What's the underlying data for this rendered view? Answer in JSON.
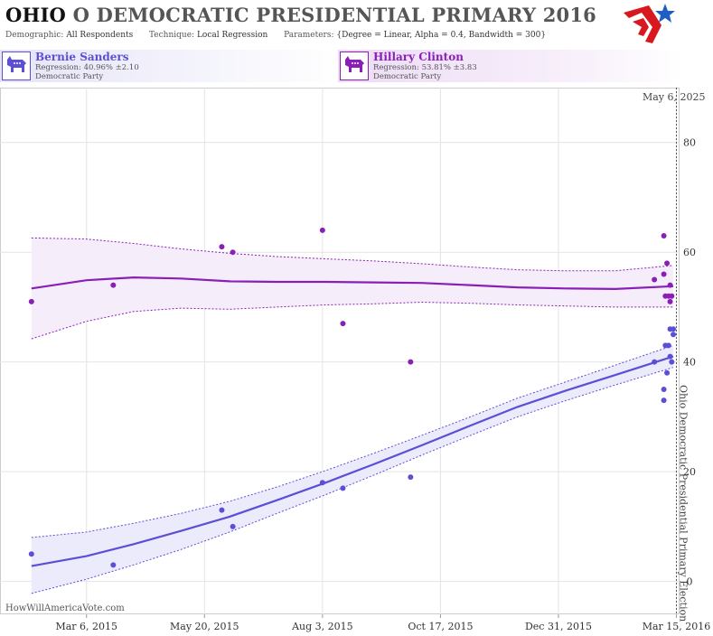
{
  "header": {
    "title_state": "OHIO",
    "title_rest": "O DEMOCRATIC PRESIDENTIAL PRIMARY 2016",
    "demographic_label": "Demographic:",
    "demographic_value": "All Respondents",
    "technique_label": "Technique:",
    "technique_value": "Local Regression",
    "parameters_label": "Parameters:",
    "parameters_value": "{Degree = Linear, Alpha = 0.4, Bandwidth = 300}"
  },
  "logo": {
    "icon": "flag-star-logo",
    "colors": {
      "red": "#d7191f",
      "blue": "#1f5fc4"
    }
  },
  "candidates": [
    {
      "name": "Bernie Sanders",
      "regression": "Regression: 40.96% ±2.10",
      "party": "Democratic Party",
      "icon": "democrat-donkey-icon",
      "color": "#5b4fd6"
    },
    {
      "name": "Hillary Clinton",
      "regression": "Regression: 53.81% ±3.83",
      "party": "Democratic Party",
      "icon": "democrat-donkey-icon",
      "color": "#8a1fb8"
    }
  ],
  "watermark": "HowWillAmericaVote.com",
  "chart_data": {
    "type": "line",
    "x_type": "date",
    "xlim": [
      "2015-01-10",
      "2016-03-17"
    ],
    "ylim": [
      -6,
      90
    ],
    "y_ticks": [
      0,
      20,
      40,
      60,
      80
    ],
    "x_ticks": [
      {
        "date": "2015-03-06",
        "label": "Mar 6, 2015"
      },
      {
        "date": "2015-05-20",
        "label": "May 20, 2015"
      },
      {
        "date": "2015-08-03",
        "label": "Aug 3, 2015"
      },
      {
        "date": "2015-10-17",
        "label": "Oct 17, 2015"
      },
      {
        "date": "2015-12-31",
        "label": "Dec 31, 2015"
      },
      {
        "date": "2016-03-15",
        "label": "Mar 15, 2016"
      }
    ],
    "grid": true,
    "event_line": {
      "date": "2016-03-15",
      "label": "Ohio Democratic Presidential Primary Election"
    },
    "date_label": "May 6, 2025",
    "series": [
      {
        "name": "Bernie Sanders",
        "color": "#5b4fd6",
        "band_fill": "#ecebfb",
        "points": [
          [
            "2015-01-30",
            5
          ],
          [
            "2015-03-23",
            3
          ],
          [
            "2015-05-31",
            13
          ],
          [
            "2015-06-07",
            10
          ],
          [
            "2015-08-03",
            18
          ],
          [
            "2015-08-16",
            17
          ],
          [
            "2015-09-28",
            19
          ],
          [
            "2016-03-01",
            40
          ],
          [
            "2016-03-07",
            33
          ],
          [
            "2016-03-07",
            35
          ],
          [
            "2016-03-08",
            43
          ],
          [
            "2016-03-09",
            38
          ],
          [
            "2016-03-10",
            43
          ],
          [
            "2016-03-11",
            41
          ],
          [
            "2016-03-11",
            46
          ],
          [
            "2016-03-12",
            40
          ],
          [
            "2016-03-13",
            46
          ],
          [
            "2016-03-13",
            45
          ]
        ],
        "trend": [
          [
            "2015-01-30",
            2.8
          ],
          [
            "2015-03-06",
            4.6
          ],
          [
            "2015-04-05",
            6.8
          ],
          [
            "2015-05-05",
            9.2
          ],
          [
            "2015-06-05",
            11.8
          ],
          [
            "2015-07-05",
            14.8
          ],
          [
            "2015-08-05",
            18.0
          ],
          [
            "2015-09-05",
            21.4
          ],
          [
            "2015-10-05",
            24.8
          ],
          [
            "2015-11-05",
            28.4
          ],
          [
            "2015-12-05",
            31.8
          ],
          [
            "2016-01-05",
            34.8
          ],
          [
            "2016-02-05",
            37.6
          ],
          [
            "2016-03-13",
            41.0
          ]
        ],
        "upper": [
          [
            "2015-01-30",
            8.0
          ],
          [
            "2015-03-06",
            9.0
          ],
          [
            "2015-04-05",
            10.6
          ],
          [
            "2015-05-05",
            12.4
          ],
          [
            "2015-06-05",
            14.6
          ],
          [
            "2015-07-05",
            17.2
          ],
          [
            "2015-08-05",
            20.2
          ],
          [
            "2015-09-05",
            23.4
          ],
          [
            "2015-10-05",
            26.6
          ],
          [
            "2015-11-05",
            30.0
          ],
          [
            "2015-12-05",
            33.4
          ],
          [
            "2016-01-05",
            36.4
          ],
          [
            "2016-02-05",
            39.4
          ],
          [
            "2016-03-13",
            43.0
          ]
        ],
        "lower": [
          [
            "2015-01-30",
            -2.2
          ],
          [
            "2015-03-06",
            0.4
          ],
          [
            "2015-04-05",
            3.0
          ],
          [
            "2015-05-05",
            5.8
          ],
          [
            "2015-06-05",
            9.0
          ],
          [
            "2015-07-05",
            12.4
          ],
          [
            "2015-08-05",
            15.8
          ],
          [
            "2015-09-05",
            19.4
          ],
          [
            "2015-10-05",
            23.0
          ],
          [
            "2015-11-05",
            26.6
          ],
          [
            "2015-12-05",
            30.0
          ],
          [
            "2016-01-05",
            33.0
          ],
          [
            "2016-02-05",
            35.8
          ],
          [
            "2016-03-13",
            39.0
          ]
        ]
      },
      {
        "name": "Hillary Clinton",
        "color": "#8a1fb8",
        "band_fill": "#f5eefa",
        "points": [
          [
            "2015-01-30",
            51
          ],
          [
            "2015-03-23",
            54
          ],
          [
            "2015-05-31",
            61
          ],
          [
            "2015-06-07",
            60
          ],
          [
            "2015-08-03",
            64
          ],
          [
            "2015-08-16",
            47
          ],
          [
            "2015-09-28",
            40
          ],
          [
            "2016-03-01",
            55
          ],
          [
            "2016-03-07",
            63
          ],
          [
            "2016-03-07",
            56
          ],
          [
            "2016-03-08",
            52
          ],
          [
            "2016-03-09",
            58
          ],
          [
            "2016-03-10",
            52
          ],
          [
            "2016-03-11",
            54
          ],
          [
            "2016-03-11",
            51
          ],
          [
            "2016-03-12",
            52
          ]
        ],
        "trend": [
          [
            "2015-01-30",
            53.4
          ],
          [
            "2015-03-06",
            54.9
          ],
          [
            "2015-04-05",
            55.4
          ],
          [
            "2015-05-05",
            55.2
          ],
          [
            "2015-06-05",
            54.7
          ],
          [
            "2015-07-05",
            54.6
          ],
          [
            "2015-08-05",
            54.6
          ],
          [
            "2015-09-05",
            54.5
          ],
          [
            "2015-10-05",
            54.4
          ],
          [
            "2015-11-05",
            54.0
          ],
          [
            "2015-12-05",
            53.6
          ],
          [
            "2016-01-05",
            53.4
          ],
          [
            "2016-02-05",
            53.3
          ],
          [
            "2016-03-13",
            53.8
          ]
        ],
        "upper": [
          [
            "2015-01-30",
            62.6
          ],
          [
            "2015-03-06",
            62.4
          ],
          [
            "2015-04-05",
            61.6
          ],
          [
            "2015-05-05",
            60.6
          ],
          [
            "2015-06-05",
            59.8
          ],
          [
            "2015-07-05",
            59.2
          ],
          [
            "2015-08-05",
            58.8
          ],
          [
            "2015-09-05",
            58.4
          ],
          [
            "2015-10-05",
            57.9
          ],
          [
            "2015-11-05",
            57.3
          ],
          [
            "2015-12-05",
            56.8
          ],
          [
            "2016-01-05",
            56.6
          ],
          [
            "2016-02-05",
            56.6
          ],
          [
            "2016-03-13",
            57.6
          ]
        ],
        "lower": [
          [
            "2015-01-30",
            44.2
          ],
          [
            "2015-03-06",
            47.4
          ],
          [
            "2015-04-05",
            49.2
          ],
          [
            "2015-05-05",
            49.8
          ],
          [
            "2015-06-05",
            49.6
          ],
          [
            "2015-07-05",
            50.0
          ],
          [
            "2015-08-05",
            50.4
          ],
          [
            "2015-09-05",
            50.6
          ],
          [
            "2015-10-05",
            50.9
          ],
          [
            "2015-11-05",
            50.7
          ],
          [
            "2015-12-05",
            50.4
          ],
          [
            "2016-01-05",
            50.2
          ],
          [
            "2016-02-05",
            50.0
          ],
          [
            "2016-03-13",
            50.0
          ]
        ]
      }
    ]
  }
}
